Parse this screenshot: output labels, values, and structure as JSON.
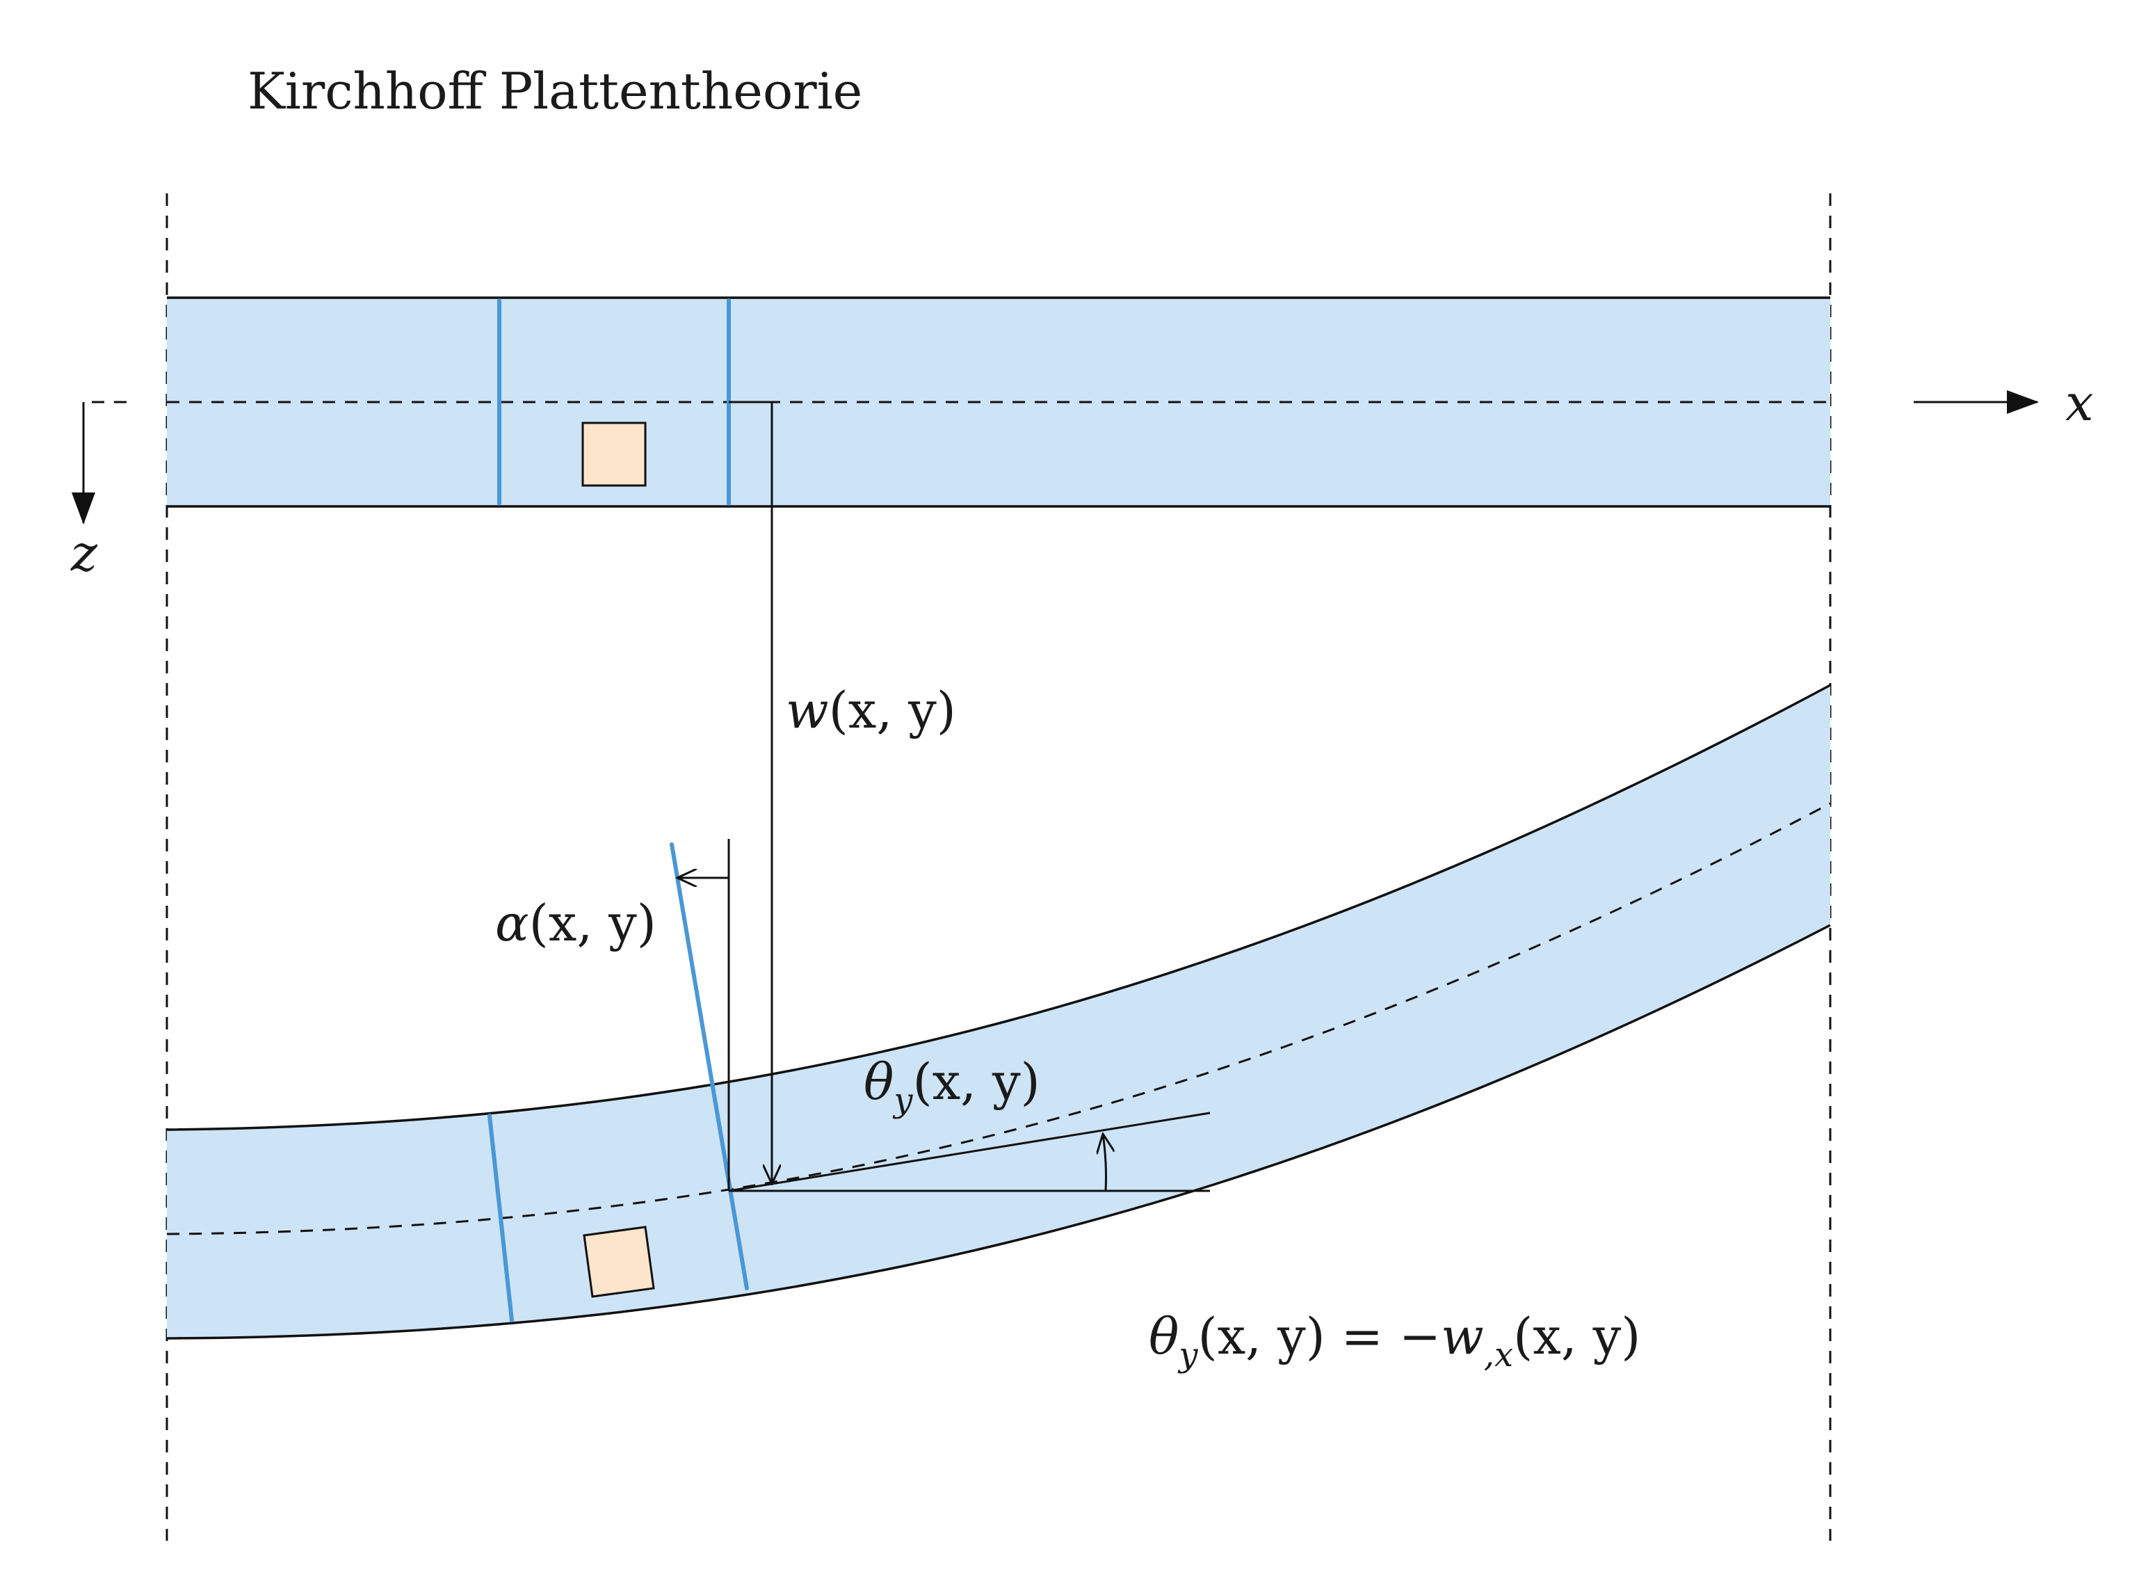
{
  "title": "Kirchhoff Plattentheorie",
  "labels": {
    "x_axis": "x",
    "z_axis": "z",
    "w_func": "w",
    "w_args": "(x, y)",
    "alpha_func": "α",
    "alpha_args": "(x, y)",
    "theta_func": "θ",
    "theta_sub": "y",
    "theta_args": "(x, y)",
    "eq_theta": "θ",
    "eq_theta_sub": "y",
    "eq_lhs_args": "(x, y) = −",
    "eq_w": "w",
    "eq_w_sub": ",x",
    "eq_rhs_args": "(x, y)"
  },
  "colors": {
    "plate_fill": "#cde3f6",
    "fiber_blue": "#4a97d6",
    "element_fill": "#fde5cc",
    "line": "#111111"
  }
}
